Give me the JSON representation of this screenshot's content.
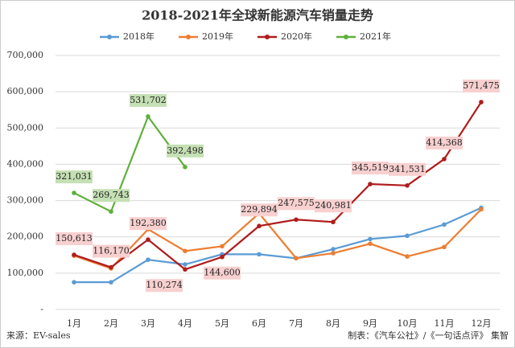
{
  "chart_data": {
    "type": "line",
    "title": "2018-2021年全球新能源汽车销量走势",
    "categories": [
      "1月",
      "2月",
      "3月",
      "4月",
      "5月",
      "6月",
      "7月",
      "8月",
      "9月",
      "10月",
      "11月",
      "12月"
    ],
    "series": [
      {
        "name": "2018年",
        "color": "#5b9bd5",
        "values": [
          75000,
          75000,
          137000,
          124000,
          152000,
          152000,
          141000,
          166000,
          194000,
          203000,
          234000,
          280000
        ]
      },
      {
        "name": "2019年",
        "color": "#ed7d31",
        "values": [
          148000,
          113000,
          221000,
          161000,
          174000,
          265000,
          141000,
          155000,
          181000,
          146000,
          172000,
          276000
        ]
      },
      {
        "name": "2020年",
        "color": "#b01c1c",
        "values": [
          150613,
          116170,
          192380,
          110274,
          144600,
          229894,
          247575,
          240981,
          345519,
          341531,
          414368,
          571475
        ],
        "value_labels": [
          "150,613",
          "116,170",
          "192,380",
          "110,274",
          "144,600",
          "229,894",
          "247,575",
          "240,981",
          "345,519",
          "341,531",
          "414,368",
          "571,475"
        ]
      },
      {
        "name": "2021年",
        "color": "#5fb03a",
        "values": [
          321031,
          269743,
          531702,
          392498,
          null,
          null,
          null,
          null,
          null,
          null,
          null,
          null
        ],
        "value_labels": [
          "321,031",
          "269,743",
          "531,702",
          "392,498",
          null,
          null,
          null,
          null,
          null,
          null,
          null,
          null
        ]
      }
    ],
    "ylim": [
      0,
      700000
    ],
    "yticks": [
      {
        "value": 0,
        "label": "-"
      },
      {
        "value": 100000,
        "label": "100,000"
      },
      {
        "value": 200000,
        "label": "200,000"
      },
      {
        "value": 300000,
        "label": "300,000"
      },
      {
        "value": 400000,
        "label": "400,000"
      },
      {
        "value": 500000,
        "label": "500,000"
      },
      {
        "value": 600000,
        "label": "600,000"
      },
      {
        "value": 700000,
        "label": "700,000"
      }
    ],
    "grid": true,
    "legend": "top",
    "source": "来源：EV-sales",
    "credit": "制表：《汽车公社》/《一句话点评》 集智"
  }
}
